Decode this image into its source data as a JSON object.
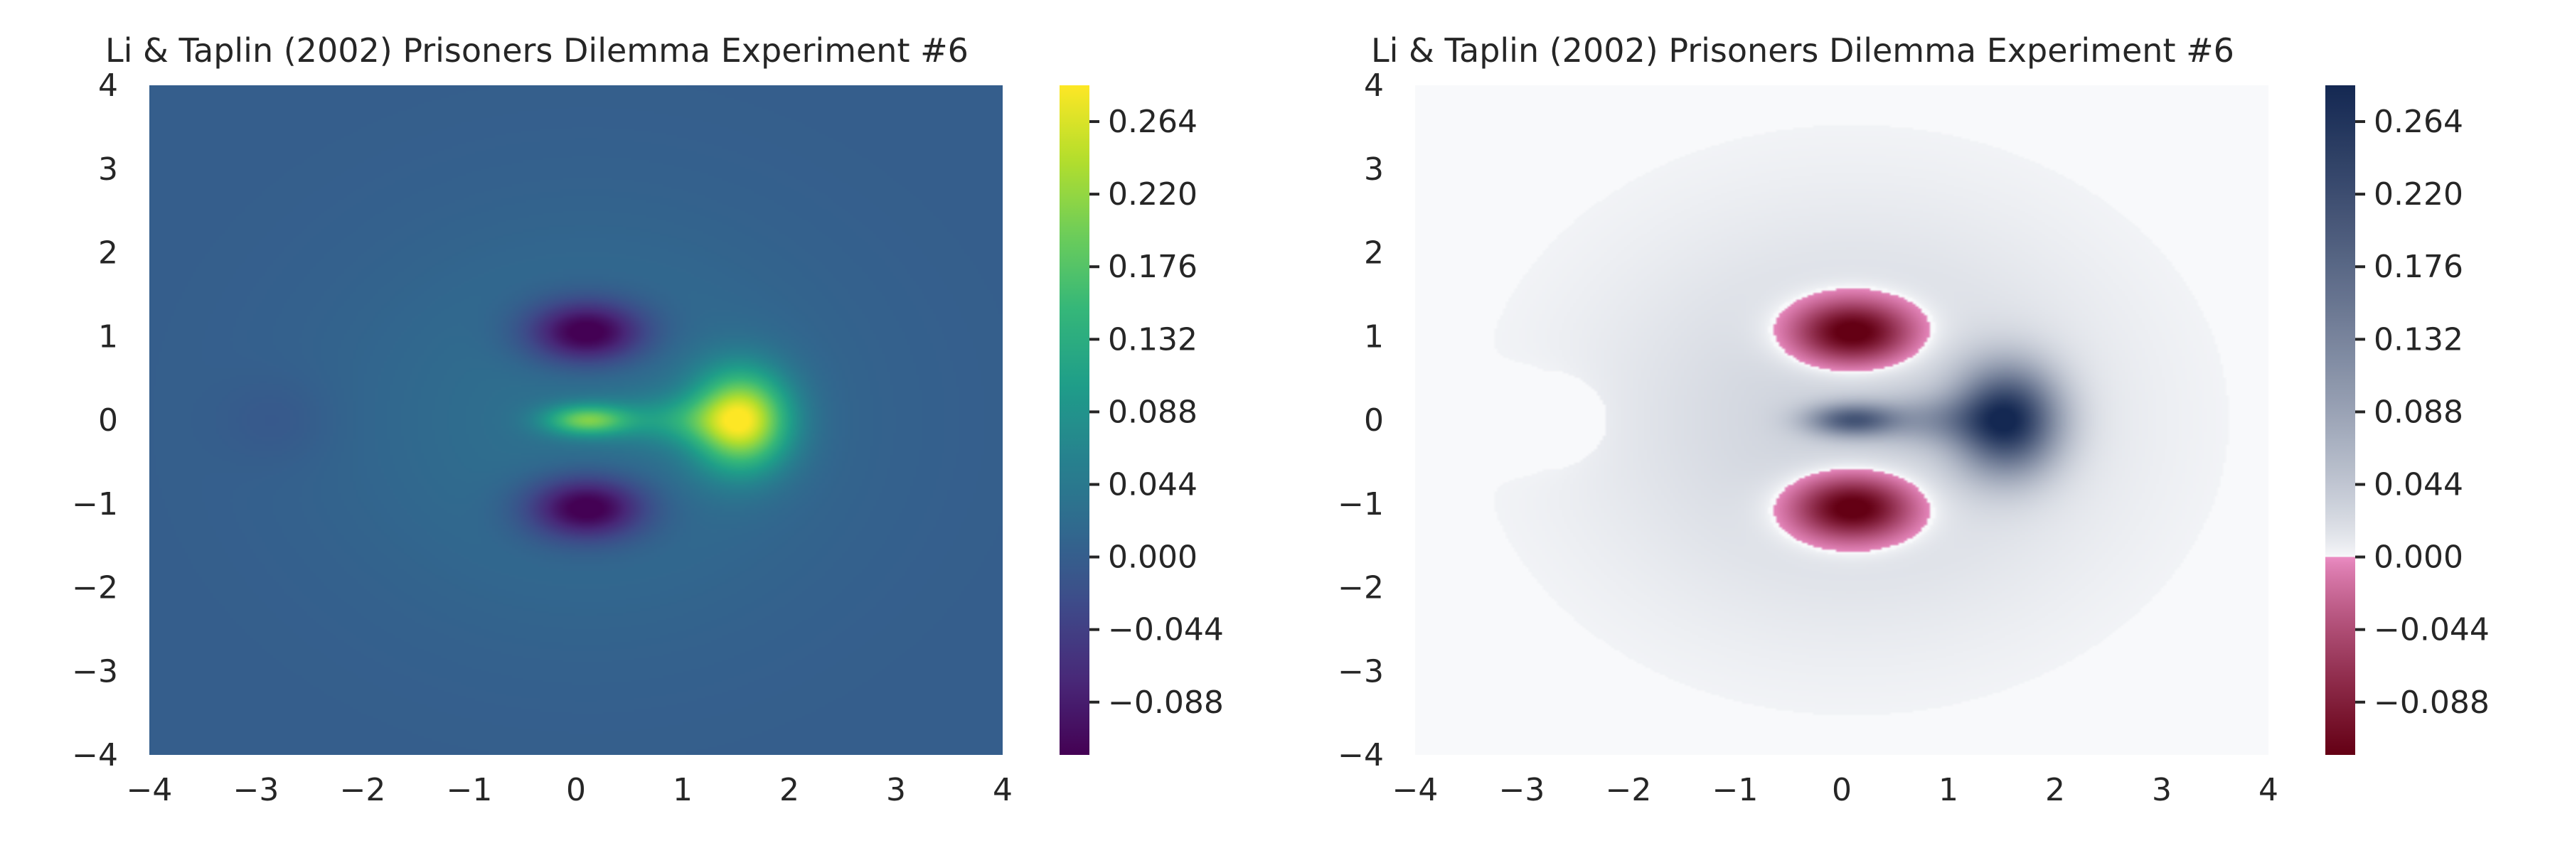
{
  "chart_data": [
    {
      "type": "heatmap",
      "title": "Li & Taplin (2002) Prisoners Dilemma Experiment #6",
      "xlabel": "",
      "ylabel": "",
      "xlim": [
        -4,
        4
      ],
      "ylim": [
        -4,
        4
      ],
      "xticks": [
        "−4",
        "−3",
        "−2",
        "−1",
        "0",
        "1",
        "2",
        "3",
        "4"
      ],
      "yticks": [
        "4",
        "3",
        "2",
        "1",
        "0",
        "−1",
        "−2",
        "−3",
        "−4"
      ],
      "colormap": "viridis",
      "color_range": [
        -0.12,
        0.286
      ],
      "colorbar_ticks": [
        0.264,
        0.22,
        0.176,
        0.132,
        0.088,
        0.044,
        0.0,
        -0.044,
        -0.088
      ],
      "colorbar_labels": [
        "0.264",
        "0.220",
        "0.176",
        "0.132",
        "0.088",
        "0.044",
        "0.000",
        "−0.044",
        "−0.088"
      ],
      "features": [
        {
          "kind": "peak",
          "x": 1.55,
          "y": 0.0,
          "value": 0.286
        },
        {
          "kind": "ridge",
          "x": 0.1,
          "y": 0.0,
          "value": 0.2
        },
        {
          "kind": "trough",
          "x": 0.1,
          "y": 1.05,
          "value": -0.115
        },
        {
          "kind": "trough",
          "x": 0.1,
          "y": -1.05,
          "value": -0.115
        },
        {
          "kind": "dip",
          "x": -2.8,
          "y": 0.0,
          "value": -0.01
        }
      ],
      "grid": false
    },
    {
      "type": "heatmap",
      "title": "Li & Taplin (2002) Prisoners Dilemma Experiment #6",
      "xlabel": "",
      "ylabel": "",
      "xlim": [
        -4,
        4
      ],
      "ylim": [
        -4,
        4
      ],
      "xticks": [
        "−4",
        "−3",
        "−2",
        "−1",
        "0",
        "1",
        "2",
        "3",
        "4"
      ],
      "yticks": [
        "4",
        "3",
        "2",
        "1",
        "0",
        "−1",
        "−2",
        "−3",
        "−4"
      ],
      "colormap": "diverging: pink-maroon (negative) / white / navy (positive)",
      "color_range": [
        -0.12,
        0.286
      ],
      "colorbar_ticks": [
        0.264,
        0.22,
        0.176,
        0.132,
        0.088,
        0.044,
        0.0,
        -0.044,
        -0.088
      ],
      "colorbar_labels": [
        "0.264",
        "0.220",
        "0.176",
        "0.132",
        "0.088",
        "0.044",
        "0.000",
        "−0.044",
        "−0.088"
      ],
      "features": [
        {
          "kind": "peak",
          "x": 1.55,
          "y": 0.0,
          "value": 0.286
        },
        {
          "kind": "ridge",
          "x": 0.1,
          "y": 0.0,
          "value": 0.2
        },
        {
          "kind": "trough",
          "x": 0.1,
          "y": 1.05,
          "value": -0.115
        },
        {
          "kind": "trough",
          "x": 0.1,
          "y": -1.05,
          "value": -0.115
        },
        {
          "kind": "dip",
          "x": -2.8,
          "y": 0.0,
          "value": -0.01
        }
      ],
      "grid": false
    }
  ]
}
